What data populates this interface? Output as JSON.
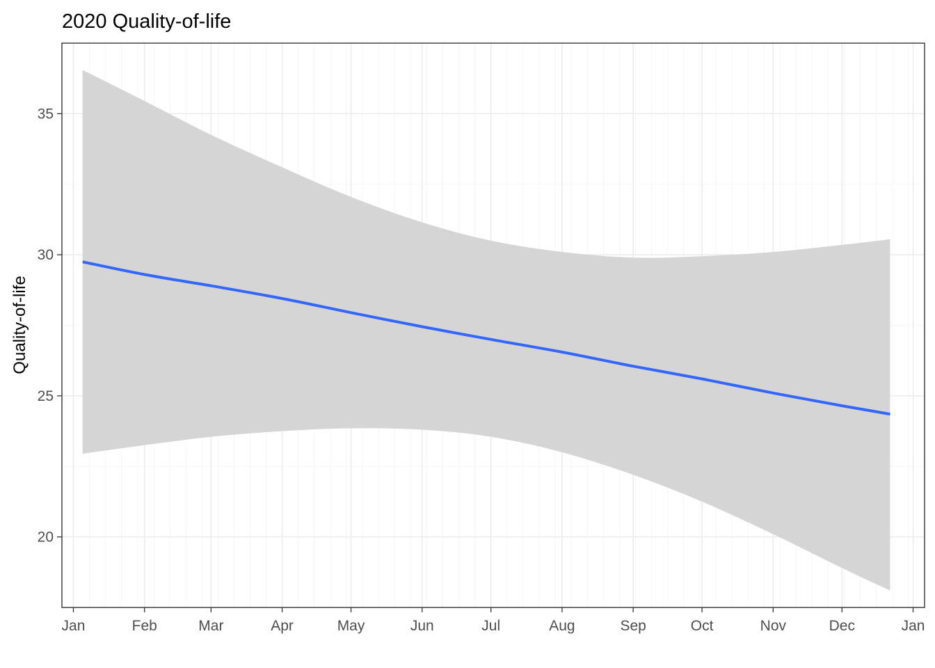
{
  "chart_data": {
    "type": "line",
    "title": "2020 Quality-of-life",
    "xlabel": "",
    "ylabel": "Quality-of-life",
    "x_axis": {
      "ticks": [
        {
          "label": "Jan",
          "date": "2020-01-01"
        },
        {
          "label": "Feb",
          "date": "2020-02-01"
        },
        {
          "label": "Mar",
          "date": "2020-03-01"
        },
        {
          "label": "Apr",
          "date": "2020-04-01"
        },
        {
          "label": "May",
          "date": "2020-05-01"
        },
        {
          "label": "Jun",
          "date": "2020-06-01"
        },
        {
          "label": "Jul",
          "date": "2020-07-01"
        },
        {
          "label": "Aug",
          "date": "2020-08-01"
        },
        {
          "label": "Sep",
          "date": "2020-09-01"
        },
        {
          "label": "Oct",
          "date": "2020-10-01"
        },
        {
          "label": "Nov",
          "date": "2020-11-01"
        },
        {
          "label": "Dec",
          "date": "2020-12-01"
        },
        {
          "label": "Jan",
          "date": "2021-01-01"
        }
      ],
      "range": [
        "2019-12-27",
        "2021-01-06"
      ]
    },
    "y_axis": {
      "ticks": [
        20,
        25,
        30,
        35
      ],
      "range": [
        17.5,
        37.5
      ]
    },
    "grid": true,
    "series": [
      {
        "kind": "smooth-fit",
        "color": "#3366ff",
        "points": [
          {
            "x": "2020-01-05",
            "y": 29.75,
            "lower": 22.95,
            "upper": 36.55
          },
          {
            "x": "2020-02-01",
            "y": 29.3,
            "lower": 23.25,
            "upper": 35.45
          },
          {
            "x": "2020-03-01",
            "y": 28.9,
            "lower": 23.55,
            "upper": 34.25
          },
          {
            "x": "2020-04-01",
            "y": 28.45,
            "lower": 23.75,
            "upper": 33.1
          },
          {
            "x": "2020-05-01",
            "y": 27.95,
            "lower": 23.85,
            "upper": 32.05
          },
          {
            "x": "2020-06-01",
            "y": 27.45,
            "lower": 23.8,
            "upper": 31.15
          },
          {
            "x": "2020-07-01",
            "y": 27.0,
            "lower": 23.55,
            "upper": 30.5
          },
          {
            "x": "2020-08-01",
            "y": 26.55,
            "lower": 23.0,
            "upper": 30.1
          },
          {
            "x": "2020-09-01",
            "y": 26.05,
            "lower": 22.2,
            "upper": 29.9
          },
          {
            "x": "2020-10-01",
            "y": 25.6,
            "lower": 21.25,
            "upper": 29.95
          },
          {
            "x": "2020-11-01",
            "y": 25.1,
            "lower": 20.1,
            "upper": 30.1
          },
          {
            "x": "2020-12-01",
            "y": 24.65,
            "lower": 18.9,
            "upper": 30.35
          },
          {
            "x": "2020-12-22",
            "y": 24.35,
            "lower": 18.1,
            "upper": 30.55
          }
        ]
      }
    ],
    "ribbon_color": "#d5d5d5"
  }
}
